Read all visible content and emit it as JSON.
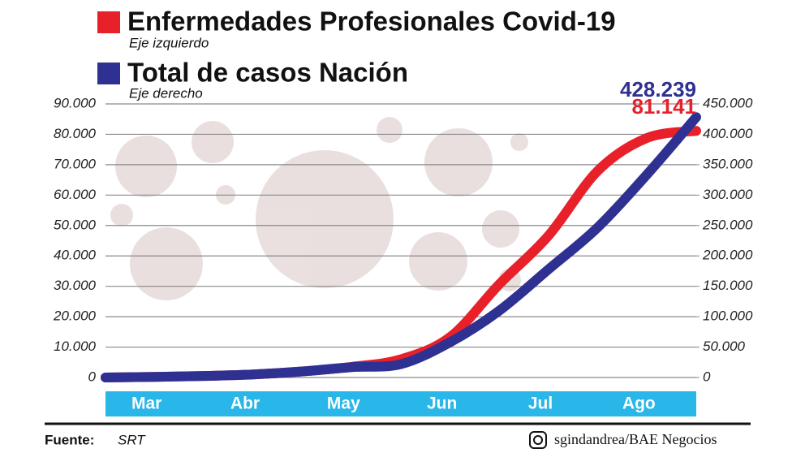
{
  "chart_data": {
    "type": "line",
    "categories": [
      null,
      "Mar",
      null,
      "Abr",
      null,
      "May",
      null,
      "Jun",
      null,
      "Jul",
      null,
      "Ago",
      null
    ],
    "series": [
      {
        "name": "Enfermedades Profesionales Covid-19",
        "note": "Eje izquierdo",
        "color": "#e8202a",
        "axis": "y",
        "values": [
          0,
          200,
          500,
          1000,
          2000,
          3500,
          6000,
          13300,
          30700,
          46700,
          68000,
          78800,
          81141
        ],
        "value_labels": [
          null,
          null,
          null,
          null,
          null,
          null,
          null,
          null,
          null,
          null,
          null,
          null,
          "81.141"
        ]
      },
      {
        "name": "Total de casos Nación",
        "note": "Eje derecho",
        "color": "#2e3192",
        "axis": "y2",
        "values": [
          0,
          1000,
          2500,
          5000,
          10000,
          17000,
          22000,
          58000,
          110000,
          178000,
          247000,
          334000,
          428239
        ],
        "value_labels": [
          null,
          null,
          null,
          null,
          null,
          null,
          null,
          null,
          null,
          null,
          null,
          null,
          "428.239"
        ]
      }
    ],
    "ylim": [
      0,
      90000
    ],
    "yticks": [
      0,
      {
        "value": 10000,
        "label": "10.000"
      },
      {
        "value": 20000,
        "label": "20.000"
      },
      {
        "value": 30000,
        "label": "30.000"
      },
      {
        "value": 40000,
        "label": "40.000"
      },
      {
        "value": 50000,
        "label": "50.000"
      },
      {
        "value": 60000,
        "label": "60.000"
      },
      {
        "value": 70000,
        "label": "70.000"
      },
      {
        "value": 80000,
        "label": "80.000"
      },
      {
        "value": 90000,
        "label": "90.000"
      }
    ],
    "y2lim": [
      0,
      450000
    ],
    "y2ticks": [
      0,
      {
        "value": 50000,
        "label": "50.000"
      },
      {
        "value": 100000,
        "label": "100.000"
      },
      {
        "value": 150000,
        "label": "150.000"
      },
      {
        "value": 200000,
        "label": "200.000"
      },
      {
        "value": 250000,
        "label": "250.000"
      },
      {
        "value": 300000,
        "label": "300.000"
      },
      {
        "value": 350000,
        "label": "350.000"
      },
      {
        "value": 400000,
        "label": "400.000"
      },
      {
        "value": 450000,
        "label": "450.000"
      }
    ],
    "grid": true,
    "source_label": "Fuente:",
    "source": "SRT",
    "credit": "sgindandrea/BAE Negocios"
  }
}
